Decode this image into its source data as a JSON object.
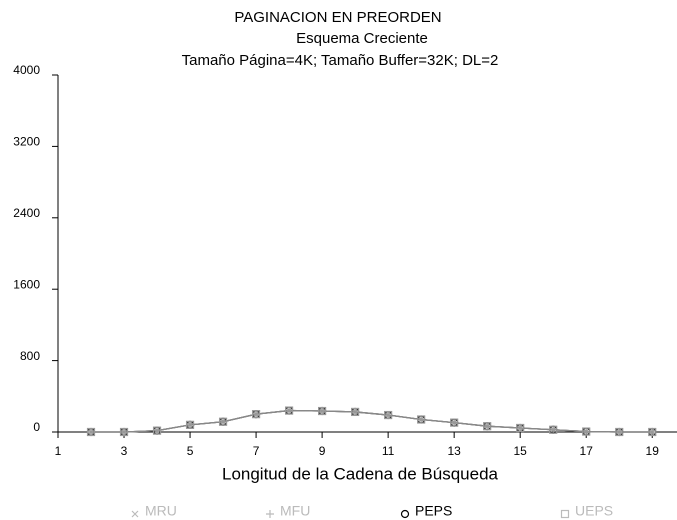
{
  "chart_data": {
    "type": "line",
    "title": "PAGINACION EN PREORDEN",
    "subtitle": "Esquema Creciente",
    "subtitle2": "Tamaño Página=4K; Tamaño Buffer=32K; DL=2",
    "x_label": "Longitud de la Cadena de Búsqueda",
    "x": [
      2,
      3,
      4,
      5,
      6,
      7,
      8,
      9,
      10,
      11,
      12,
      13,
      14,
      15,
      16,
      17,
      18,
      19
    ],
    "series": [
      {
        "name": "MRU",
        "color": "#bbbbbb",
        "marker": "x",
        "values": [
          0,
          0,
          15,
          80,
          115,
          200,
          240,
          235,
          225,
          190,
          140,
          105,
          65,
          45,
          25,
          5,
          0,
          0
        ]
      },
      {
        "name": "MFU",
        "color": "#bbbbbb",
        "marker": "+",
        "values": [
          0,
          0,
          15,
          80,
          115,
          200,
          240,
          235,
          225,
          190,
          140,
          105,
          65,
          45,
          25,
          5,
          0,
          0
        ]
      },
      {
        "name": "PEPS",
        "color": "#000000",
        "marker": "o",
        "values": [
          0,
          0,
          15,
          80,
          115,
          200,
          240,
          235,
          225,
          190,
          140,
          105,
          65,
          45,
          25,
          5,
          0,
          0
        ]
      },
      {
        "name": "UEPS",
        "color": "#bbbbbb",
        "marker": "square",
        "values": [
          0,
          0,
          15,
          80,
          115,
          200,
          240,
          235,
          225,
          190,
          140,
          105,
          65,
          45,
          25,
          5,
          0,
          0
        ]
      }
    ],
    "xlim": [
      1,
      19.75
    ],
    "xticks": [
      1,
      3,
      5,
      7,
      9,
      11,
      13,
      15,
      17,
      19
    ],
    "ylim": [
      0,
      4000
    ],
    "yticks": [
      0,
      800,
      1600,
      2400,
      3200,
      4000
    ],
    "legend": "bottom"
  }
}
